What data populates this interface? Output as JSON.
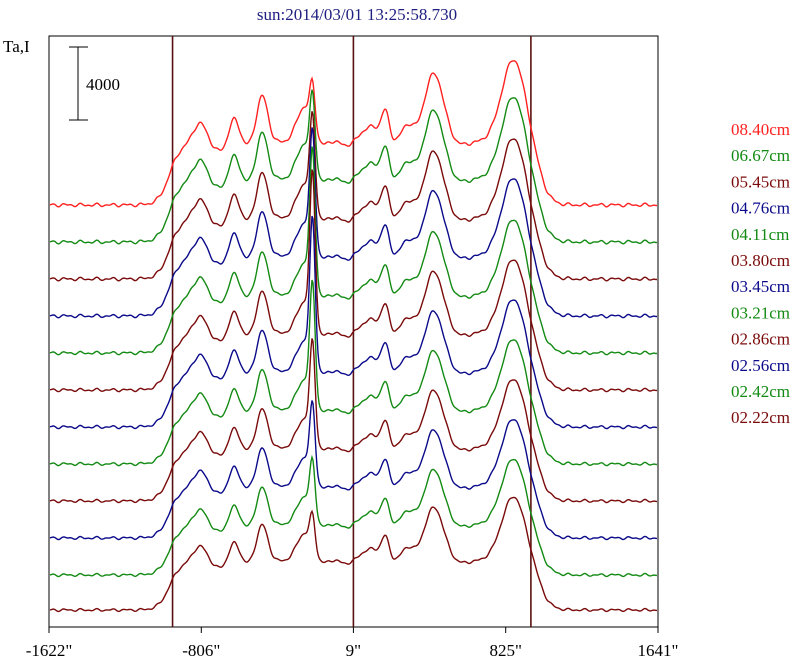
{
  "chart_data": {
    "type": "line",
    "title": "sun:2014/03/01 13:25:58.730",
    "ylabel": "Ta,I",
    "scale_bar_label": "4000",
    "scale_bar_value": 4000,
    "x_ticks": [
      {
        "value": -1622,
        "label": "-1622\""
      },
      {
        "value": -806,
        "label": "-806\""
      },
      {
        "value": 9,
        "label": "9\""
      },
      {
        "value": 825,
        "label": "825\""
      },
      {
        "value": 1641,
        "label": "1641\""
      }
    ],
    "xlim": [
      -1622,
      1641
    ],
    "vertical_lines": [
      -960,
      9,
      960
    ],
    "series": [
      {
        "name": "08.40cm",
        "color": "#ff2020",
        "amp": 1.0,
        "peak": 0.4
      },
      {
        "name": "06.67cm",
        "color": "#138a13",
        "amp": 1.0,
        "peak": 0.65
      },
      {
        "name": "05.45cm",
        "color": "#7a0a0a",
        "amp": 0.97,
        "peak": 0.85
      },
      {
        "name": "04.76cm",
        "color": "#0a0a8a",
        "amp": 0.95,
        "peak": 1.1
      },
      {
        "name": "04.11cm",
        "color": "#138a13",
        "amp": 0.92,
        "peak": 1.35
      },
      {
        "name": "03.80cm",
        "color": "#7a0a0a",
        "amp": 0.9,
        "peak": 1.55
      },
      {
        "name": "03.45cm",
        "color": "#0a0a8a",
        "amp": 0.88,
        "peak": 1.5
      },
      {
        "name": "03.21cm",
        "color": "#138a13",
        "amp": 0.86,
        "peak": 1.25
      },
      {
        "name": "02.86cm",
        "color": "#7a0a0a",
        "amp": 0.84,
        "peak": 1.05
      },
      {
        "name": "02.56cm",
        "color": "#0a0a8a",
        "amp": 0.82,
        "peak": 0.8
      },
      {
        "name": "02.42cm",
        "color": "#138a13",
        "amp": 0.8,
        "peak": 0.6
      },
      {
        "name": "02.22cm",
        "color": "#7a0a0a",
        "amp": 0.78,
        "peak": 0.4
      }
    ]
  }
}
